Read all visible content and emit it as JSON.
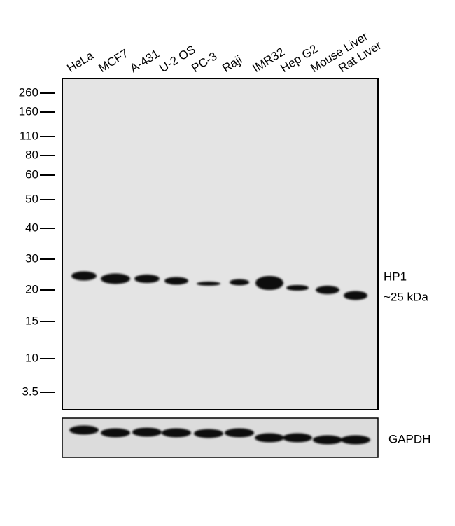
{
  "lanes": [
    "HeLa",
    "MCF7",
    "A-431",
    "U-2 OS",
    "PC-3",
    "Raji",
    "IMR32",
    "Hep G2",
    "Mouse Liver",
    "Rat Liver"
  ],
  "markers": [
    "260",
    "160",
    "110",
    "80",
    "60",
    "50",
    "40",
    "30",
    "20",
    "15",
    "10",
    "3.5"
  ],
  "band_label": {
    "name": "HP1",
    "size": "~25 kDa"
  },
  "control_label": "GAPDH"
}
